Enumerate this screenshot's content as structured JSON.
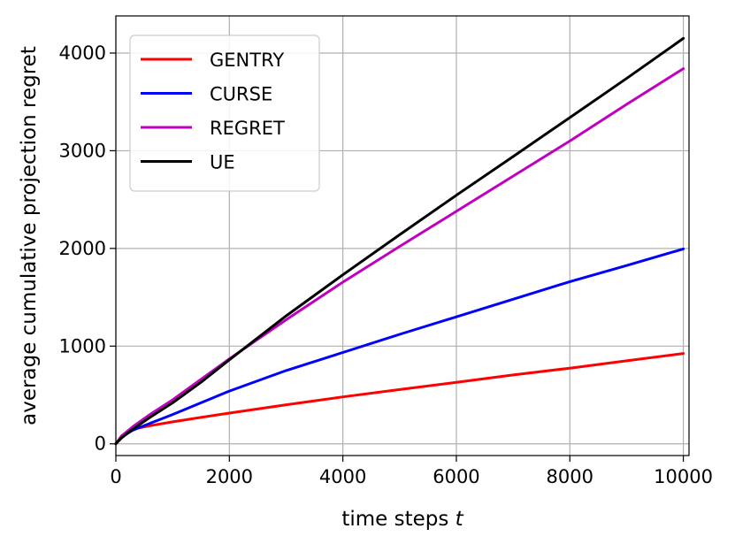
{
  "chart_data": {
    "type": "line",
    "xlabel_prefix": "time steps ",
    "xlabel_var": "t",
    "ylabel": "average cumulative projection regret",
    "xlim": [
      0,
      10100
    ],
    "ylim": [
      -120,
      4380
    ],
    "xticks": [
      0,
      2000,
      4000,
      6000,
      8000,
      10000
    ],
    "yticks": [
      0,
      1000,
      2000,
      3000,
      4000
    ],
    "grid": true,
    "legend_position": "upper-left",
    "series": [
      {
        "name": "GENTRY",
        "color": "#ff0000",
        "points": [
          [
            0,
            0
          ],
          [
            100,
            80
          ],
          [
            300,
            150
          ],
          [
            600,
            185
          ],
          [
            1000,
            225
          ],
          [
            1500,
            270
          ],
          [
            2000,
            315
          ],
          [
            3000,
            400
          ],
          [
            4000,
            480
          ],
          [
            5000,
            555
          ],
          [
            6000,
            630
          ],
          [
            7000,
            705
          ],
          [
            8000,
            775
          ],
          [
            9000,
            850
          ],
          [
            10000,
            925
          ]
        ]
      },
      {
        "name": "CURSE",
        "color": "#0000ff",
        "points": [
          [
            0,
            0
          ],
          [
            100,
            70
          ],
          [
            300,
            140
          ],
          [
            600,
            210
          ],
          [
            1000,
            300
          ],
          [
            1500,
            420
          ],
          [
            2000,
            540
          ],
          [
            3000,
            750
          ],
          [
            4000,
            935
          ],
          [
            5000,
            1120
          ],
          [
            6000,
            1300
          ],
          [
            7000,
            1480
          ],
          [
            8000,
            1660
          ],
          [
            9000,
            1825
          ],
          [
            10000,
            1995
          ]
        ]
      },
      {
        "name": "REGRET",
        "color": "#bf00bf",
        "points": [
          [
            0,
            0
          ],
          [
            100,
            80
          ],
          [
            300,
            175
          ],
          [
            600,
            300
          ],
          [
            1000,
            450
          ],
          [
            1500,
            660
          ],
          [
            2000,
            870
          ],
          [
            3000,
            1270
          ],
          [
            4000,
            1655
          ],
          [
            5000,
            2020
          ],
          [
            6000,
            2380
          ],
          [
            7000,
            2740
          ],
          [
            8000,
            3100
          ],
          [
            9000,
            3475
          ],
          [
            10000,
            3840
          ]
        ]
      },
      {
        "name": "UE",
        "color": "#000000",
        "points": [
          [
            0,
            0
          ],
          [
            100,
            60
          ],
          [
            300,
            150
          ],
          [
            600,
            270
          ],
          [
            1000,
            420
          ],
          [
            1500,
            630
          ],
          [
            2000,
            860
          ],
          [
            3000,
            1310
          ],
          [
            4000,
            1730
          ],
          [
            5000,
            2140
          ],
          [
            6000,
            2545
          ],
          [
            7000,
            2940
          ],
          [
            8000,
            3340
          ],
          [
            9000,
            3740
          ],
          [
            10000,
            4150
          ]
        ]
      }
    ]
  }
}
